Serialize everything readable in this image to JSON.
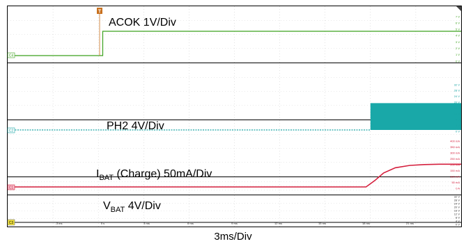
{
  "chart_data": {
    "type": "line",
    "title": "",
    "xlabel": "3ms/Div",
    "x_unit": "ms",
    "x_range": [
      -6.5,
      24.5
    ],
    "x_ticks": [
      "-3 ms",
      "0 s",
      "3 ms",
      "6 ms",
      "9 ms",
      "12 ms",
      "15 ms",
      "18 ms",
      "21 ms"
    ],
    "trigger_marker": "T",
    "channels": [
      {
        "id": "C4",
        "label": "ACOK 1V/Div",
        "color": "#3aa11c",
        "y_unit": "V",
        "y_range": [
          0,
          7
        ],
        "y_ticks": [
          "7 V",
          "6 V",
          "5 V",
          "4 V",
          "3 V",
          "2 V",
          "1 V",
          "0 V"
        ],
        "x": [
          -6.5,
          0.0,
          0.0,
          24.5
        ],
        "y": [
          0.0,
          0.0,
          4.9,
          4.9
        ]
      },
      {
        "id": "C2",
        "label": "PH2 4V/Div",
        "color": "#1aa5a5",
        "y_unit": "V",
        "y_range": [
          0,
          32
        ],
        "y_ticks": [
          "32 V",
          "28 V",
          "24 V",
          "20 V",
          "16 V",
          "12 V",
          "8 V",
          "4 V",
          "0 V"
        ],
        "x": [
          -6.5,
          18.3
        ],
        "y": [
          0.0,
          0.0
        ],
        "switching_region": {
          "x_start": 18.3,
          "x_end": 24.5,
          "y_low": 0,
          "y_high": 19
        }
      },
      {
        "id": "C1",
        "label_main": "I",
        "label_sub": "BAT",
        "label_rest": " (Charge) 50mA/Div",
        "color": "#d41e3c",
        "y_unit": "mA",
        "y_range": [
          0,
          400
        ],
        "y_ticks": [
          "400 mA",
          "350 mA",
          "300 mA",
          "250 mA",
          "200 mA",
          "150 mA",
          "100 mA",
          "50 mA",
          "0 A"
        ],
        "x": [
          -6.5,
          18.0,
          18.6,
          19.2,
          20.0,
          21.0,
          22.0,
          23.0,
          24.5
        ],
        "y": [
          0,
          0,
          55,
          120,
          165,
          185,
          192,
          195,
          195
        ]
      },
      {
        "id": "C3",
        "label_main": "V",
        "label_sub": "BAT",
        "label_rest": " 4V/Div",
        "color": "#000000",
        "y_unit": "V",
        "y_range": [
          0,
          32
        ],
        "y_ticks": [
          "32 V",
          "28 V",
          "24 V",
          "20 V",
          "16 V",
          "12 V",
          "8 V",
          "4 V",
          "0 V"
        ],
        "x": [
          -6.5,
          24.5
        ],
        "y": [
          0,
          0
        ]
      }
    ]
  },
  "panel_tags": {
    "c4": "C4",
    "c2": "C2",
    "c1": "C1",
    "c3": "C3"
  }
}
